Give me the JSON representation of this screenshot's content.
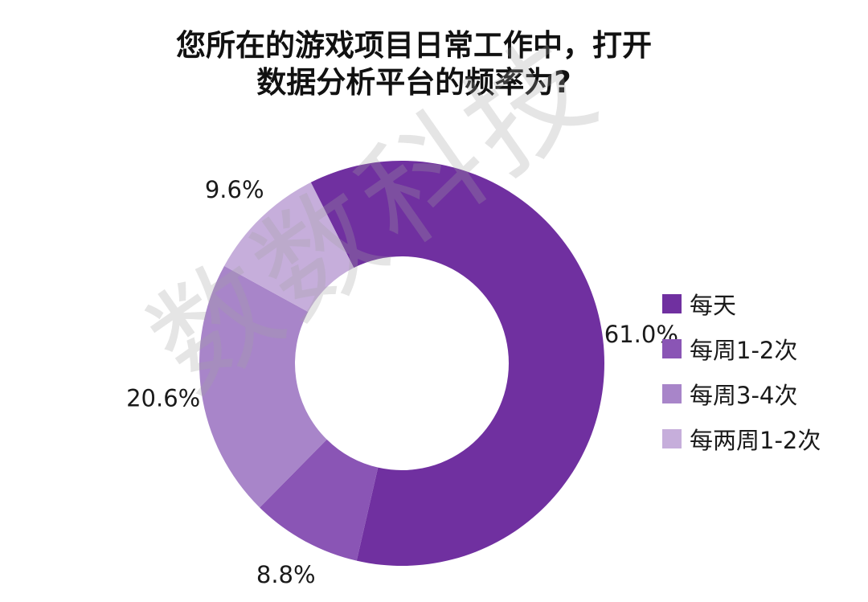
{
  "chart_data": {
    "type": "pie",
    "title_lines": [
      "您所在的游戏项目日常工作中，打开",
      "数据分析平台的频率为?"
    ],
    "categories": [
      "每天",
      "每周1-2次",
      "每周3-4次",
      "每两周1-2次"
    ],
    "values": [
      61.0,
      8.8,
      20.6,
      9.6
    ],
    "value_labels": [
      "61.0%",
      "8.8%",
      "20.6%",
      "9.6%"
    ],
    "colors": [
      "#7030a0",
      "#8a55b5",
      "#a885c9",
      "#c6aedb"
    ],
    "donut": true,
    "legend_position": "right",
    "watermark": "数数科技"
  }
}
